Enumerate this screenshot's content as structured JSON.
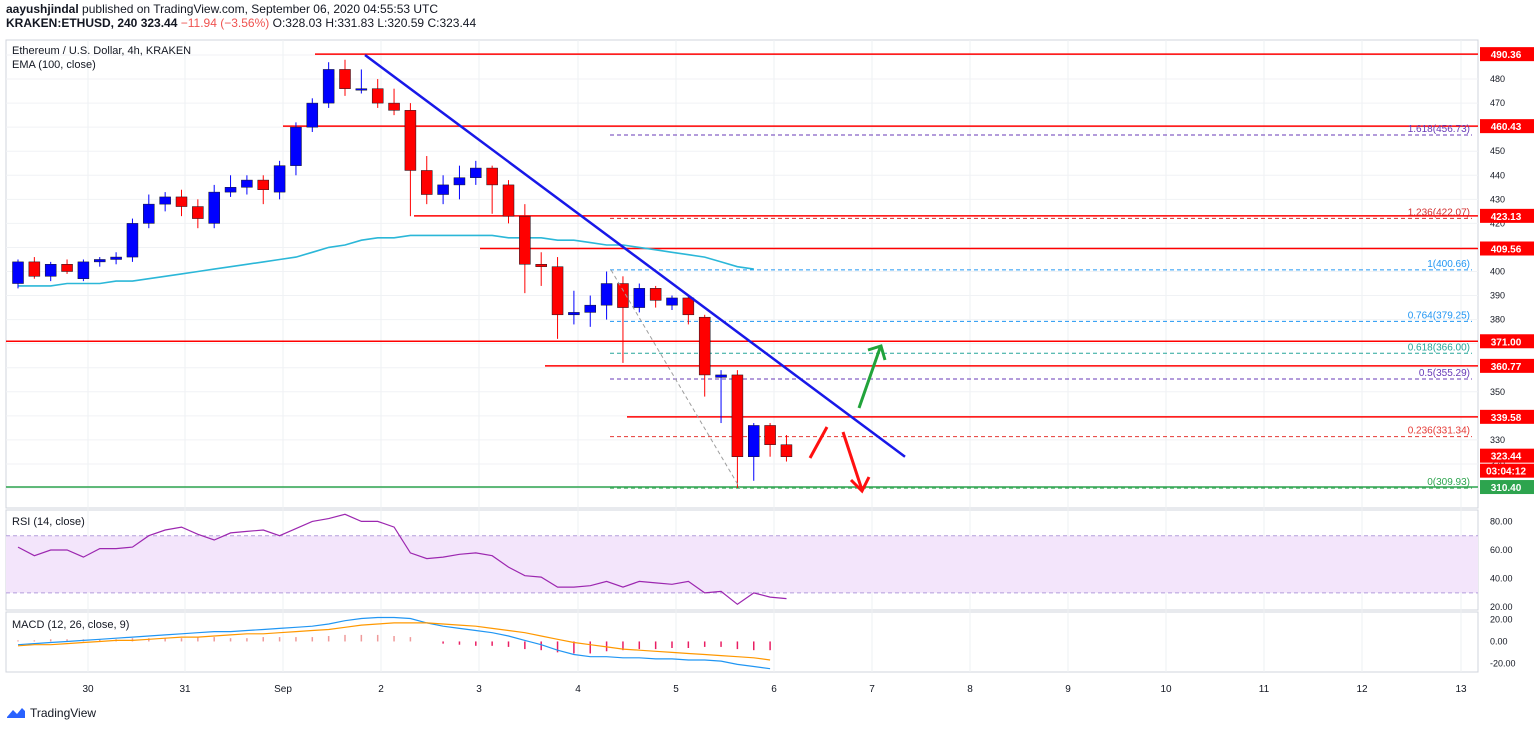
{
  "header": {
    "author": "aayushjindal",
    "published": "published on TradingView.com, September 06, 2020 04:55:53 UTC",
    "symbol_line": "KRAKEN:ETHUSD, 240",
    "last": "323.44",
    "change": "−11.94 (−3.56%)",
    "o": "O:328.03",
    "h": "H:331.83",
    "l": "L:320.59",
    "c": "C:323.44"
  },
  "footer": {
    "brand": "TradingView"
  },
  "colors": {
    "up": "#0000ff",
    "down": "#ff0000",
    "ema": "#2bb7d8",
    "rsi": "#9c27b0",
    "macd": "#2196f3",
    "signal": "#ff9800",
    "support": "#2da44e"
  },
  "chart_data": [
    {
      "type": "candlestick",
      "title": "Ethereum / U.S. Dollar, 4h, KRAKEN",
      "indicator_label": "EMA (100, close)",
      "ylim": [
        305,
        495
      ],
      "y_ticks": [
        310,
        320,
        330,
        340,
        350,
        360,
        370,
        380,
        390,
        400,
        410,
        420,
        430,
        440,
        450,
        460,
        470,
        480,
        490
      ],
      "x_ticks": [
        "30",
        "31",
        "Sep",
        "2",
        "3",
        "4",
        "5",
        "6",
        "7",
        "8",
        "9",
        "10",
        "11",
        "12",
        "13"
      ],
      "candles": [
        {
          "o": 395,
          "h": 405,
          "l": 393,
          "c": 404
        },
        {
          "o": 404,
          "h": 406,
          "l": 397,
          "c": 398
        },
        {
          "o": 398,
          "h": 404,
          "l": 396,
          "c": 403
        },
        {
          "o": 403,
          "h": 405,
          "l": 399,
          "c": 400
        },
        {
          "o": 397,
          "h": 405,
          "l": 396,
          "c": 404
        },
        {
          "o": 404,
          "h": 406,
          "l": 402,
          "c": 405
        },
        {
          "o": 405,
          "h": 408,
          "l": 403,
          "c": 406
        },
        {
          "o": 406,
          "h": 422,
          "l": 404,
          "c": 420
        },
        {
          "o": 420,
          "h": 432,
          "l": 418,
          "c": 428
        },
        {
          "o": 428,
          "h": 433,
          "l": 425,
          "c": 431
        },
        {
          "o": 431,
          "h": 434,
          "l": 423,
          "c": 427
        },
        {
          "o": 427,
          "h": 430,
          "l": 418,
          "c": 422
        },
        {
          "o": 420,
          "h": 436,
          "l": 418,
          "c": 433
        },
        {
          "o": 433,
          "h": 440,
          "l": 431,
          "c": 435
        },
        {
          "o": 435,
          "h": 440,
          "l": 432,
          "c": 438
        },
        {
          "o": 438,
          "h": 440,
          "l": 428,
          "c": 434
        },
        {
          "o": 433,
          "h": 446,
          "l": 430,
          "c": 444
        },
        {
          "o": 444,
          "h": 462,
          "l": 440,
          "c": 460
        },
        {
          "o": 460,
          "h": 472,
          "l": 458,
          "c": 470
        },
        {
          "o": 470,
          "h": 487,
          "l": 468,
          "c": 484
        },
        {
          "o": 484,
          "h": 488,
          "l": 473,
          "c": 476
        },
        {
          "o": 476,
          "h": 484,
          "l": 474,
          "c": 476
        },
        {
          "o": 476,
          "h": 480,
          "l": 468,
          "c": 470
        },
        {
          "o": 470,
          "h": 476,
          "l": 465,
          "c": 467
        },
        {
          "o": 467,
          "h": 470,
          "l": 423,
          "c": 442
        },
        {
          "o": 442,
          "h": 448,
          "l": 428,
          "c": 432
        },
        {
          "o": 432,
          "h": 440,
          "l": 428,
          "c": 436
        },
        {
          "o": 436,
          "h": 444,
          "l": 430,
          "c": 439
        },
        {
          "o": 439,
          "h": 446,
          "l": 436,
          "c": 443
        },
        {
          "o": 443,
          "h": 444,
          "l": 424,
          "c": 436
        },
        {
          "o": 436,
          "h": 438,
          "l": 420,
          "c": 423
        },
        {
          "o": 423,
          "h": 428,
          "l": 391,
          "c": 403
        },
        {
          "o": 403,
          "h": 408,
          "l": 394,
          "c": 402
        },
        {
          "o": 402,
          "h": 406,
          "l": 372,
          "c": 382
        },
        {
          "o": 382,
          "h": 392,
          "l": 378,
          "c": 383
        },
        {
          "o": 383,
          "h": 390,
          "l": 377,
          "c": 386
        },
        {
          "o": 386,
          "h": 400,
          "l": 380,
          "c": 395
        },
        {
          "o": 395,
          "h": 398,
          "l": 362,
          "c": 385
        },
        {
          "o": 385,
          "h": 395,
          "l": 383,
          "c": 393
        },
        {
          "o": 393,
          "h": 394,
          "l": 385,
          "c": 388
        },
        {
          "o": 386,
          "h": 390,
          "l": 384,
          "c": 389
        },
        {
          "o": 389,
          "h": 390,
          "l": 378,
          "c": 382
        },
        {
          "o": 381,
          "h": 382,
          "l": 348,
          "c": 357
        },
        {
          "o": 356,
          "h": 359,
          "l": 337,
          "c": 357
        },
        {
          "o": 357,
          "h": 359,
          "l": 310,
          "c": 323
        },
        {
          "o": 323,
          "h": 337,
          "l": 313,
          "c": 336
        },
        {
          "o": 336,
          "h": 337,
          "l": 323,
          "c": 328
        },
        {
          "o": 328,
          "h": 332,
          "l": 321,
          "c": 323
        }
      ],
      "ema": [
        394,
        394,
        394,
        395,
        395,
        395,
        396,
        396,
        397,
        398,
        399,
        400,
        401,
        402,
        403,
        404,
        405,
        406,
        408,
        410,
        411,
        413,
        414,
        414,
        415,
        415,
        415,
        415,
        415,
        415,
        414,
        414,
        414,
        413,
        413,
        412,
        411,
        411,
        410,
        409,
        408,
        407,
        406,
        404,
        402,
        401
      ],
      "price_labels": [
        "490.36",
        "460.43",
        "423.13",
        "409.56",
        "371.00",
        "360.77",
        "339.58",
        "323.44",
        "03:04:12",
        "310.40"
      ],
      "fib_labels": [
        "1.618(456.73)",
        "1.236(422.07)",
        "1(400.66)",
        "0.764(379.25)",
        "0.618(366.00)",
        "0.5(355.29)",
        "0.236(331.34)",
        "0(309.93)"
      ],
      "fib_values": [
        456.73,
        422.07,
        400.66,
        379.25,
        366.0,
        355.29,
        331.34,
        309.93
      ],
      "horizontal_levels": [
        490.36,
        460.43,
        423.13,
        409.56,
        371.0,
        360.77,
        339.58,
        310.4
      ]
    },
    {
      "type": "line",
      "title": "RSI (14, close)",
      "ylim": [
        18,
        88
      ],
      "y_ticks": [
        "80.00",
        "60.00",
        "40.00",
        "20.00"
      ],
      "band": [
        30,
        70
      ],
      "values": [
        62,
        56,
        60,
        60,
        55,
        61,
        61,
        62,
        70,
        74,
        76,
        71,
        67,
        72,
        73,
        74,
        70,
        75,
        80,
        82,
        85,
        80,
        80,
        76,
        58,
        54,
        55,
        57,
        58,
        56,
        48,
        42,
        41,
        34,
        34,
        35,
        38,
        34,
        38,
        37,
        36,
        38,
        30,
        31,
        22,
        30,
        27,
        26
      ]
    },
    {
      "type": "line",
      "title": "MACD (12, 26, close, 9)",
      "ylim": [
        -28,
        27
      ],
      "y_ticks": [
        "20.00",
        "0.00",
        "-20.00"
      ],
      "series": [
        {
          "values": [
            -3,
            -2,
            -1,
            0,
            1,
            2,
            3,
            4,
            5,
            6,
            7,
            8,
            9,
            9,
            10,
            11,
            12,
            13,
            14,
            16,
            19,
            21,
            22,
            22,
            21,
            17,
            14,
            12,
            10,
            8,
            5,
            1,
            -3,
            -8,
            -12,
            -14,
            -14,
            -15,
            -15,
            -16,
            -16,
            -17,
            -17,
            -18,
            -21,
            -23,
            -25
          ]
        },
        {
          "values": [
            -4,
            -3,
            -3,
            -2,
            -1,
            0,
            1,
            1,
            2,
            3,
            4,
            4,
            5,
            6,
            7,
            7,
            8,
            9,
            10,
            11,
            13,
            15,
            16,
            17,
            17,
            17,
            16,
            15,
            14,
            12,
            10,
            8,
            5,
            2,
            -1,
            -3,
            -5,
            -7,
            -8,
            -9,
            -10,
            -11,
            -12,
            -13,
            -14,
            -15,
            -17
          ]
        }
      ]
    }
  ],
  "annotations": {
    "trendline": "descending blue trend line",
    "green_arrow": "upside scenario",
    "red_arrow": "downside scenario"
  }
}
